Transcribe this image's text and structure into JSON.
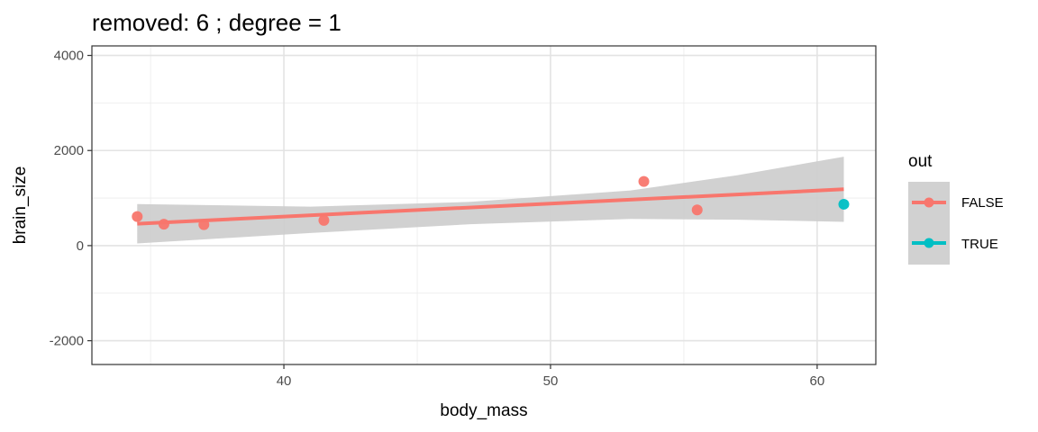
{
  "chart_data": {
    "type": "scatter",
    "title": "removed: 6  ;  degree = 1",
    "xlabel": "body_mass",
    "ylabel": "brain_size",
    "xlim": [
      32.8,
      62.2
    ],
    "ylim": [
      -2500,
      4200
    ],
    "x_ticks": [
      40,
      50,
      60
    ],
    "x_tick_labels": [
      "40",
      "50",
      "60"
    ],
    "y_ticks": [
      -2000,
      0,
      2000,
      4000
    ],
    "y_tick_labels": [
      "-2000",
      "0",
      "2000",
      "4000"
    ],
    "grid": true,
    "legend": {
      "title": "out",
      "position": "right",
      "entries": [
        "FALSE",
        "TRUE"
      ]
    },
    "series": [
      {
        "name": "FALSE",
        "color": "#F8766D",
        "points": [
          {
            "x": 34.5,
            "y": 612
          },
          {
            "x": 35.5,
            "y": 450
          },
          {
            "x": 37.0,
            "y": 440
          },
          {
            "x": 41.5,
            "y": 530
          },
          {
            "x": 53.5,
            "y": 1350
          },
          {
            "x": 55.5,
            "y": 750
          }
        ]
      },
      {
        "name": "TRUE",
        "color": "#00BFC4",
        "points": [
          {
            "x": 61.0,
            "y": 870
          }
        ]
      }
    ],
    "fit_line": {
      "color": "#F8766D",
      "x": [
        34.5,
        61.0
      ],
      "y": [
        460,
        1185
      ]
    },
    "confidence_band": {
      "color": "#cccccc",
      "x": [
        34.5,
        41.0,
        47.0,
        53.0,
        57.0,
        61.0
      ],
      "upper": [
        875,
        820,
        920,
        1160,
        1480,
        1870
      ],
      "lower": [
        45,
        265,
        450,
        560,
        545,
        500
      ]
    }
  }
}
